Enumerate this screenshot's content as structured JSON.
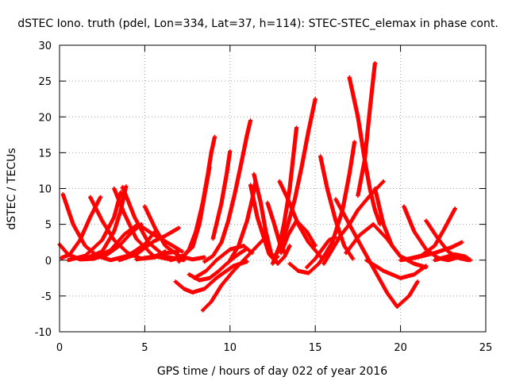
{
  "chart_data": {
    "type": "scatter",
    "title": "dSTEC Iono. truth (pdel, Lon=334, Lat=37, h=114): STEC-STEC_elemax in phase cont.",
    "xlabel": "GPS time / hours of day 022 of year 2016",
    "ylabel": "dSTEC  / TECUs",
    "xlim": [
      0,
      25
    ],
    "ylim": [
      -10,
      30
    ],
    "x_ticks": [
      "0",
      "5",
      "10",
      "15",
      "20",
      "25"
    ],
    "y_ticks": [
      "-10",
      "-5",
      "0",
      "5",
      "10",
      "15",
      "20",
      "25",
      "30"
    ],
    "grid": true,
    "marker": "+",
    "color": "#ff0000",
    "series": [
      {
        "x": [
          0.0,
          0.5,
          1.2,
          2.0,
          2.8,
          3.5,
          4.2,
          4.8
        ],
        "values": [
          2.2,
          0.8,
          0.1,
          0.2,
          0.8,
          2.0,
          3.8,
          5.0
        ]
      },
      {
        "x": [
          0.2,
          0.8,
          1.5,
          2.2,
          3.0,
          4.0,
          5.0,
          5.6
        ],
        "values": [
          9.2,
          5.0,
          2.0,
          0.6,
          0.0,
          0.6,
          2.2,
          4.0
        ]
      },
      {
        "x": [
          0.1,
          0.6,
          1.2,
          1.8,
          2.4
        ],
        "values": [
          0.3,
          0.8,
          2.8,
          6.0,
          8.8
        ]
      },
      {
        "x": [
          1.8,
          2.5,
          3.2,
          4.0,
          4.8,
          5.6,
          6.2
        ],
        "values": [
          8.8,
          5.5,
          2.8,
          1.0,
          0.2,
          0.4,
          1.2
        ]
      },
      {
        "x": [
          0.5,
          1.5,
          2.5,
          3.2,
          3.6
        ],
        "values": [
          0.0,
          0.6,
          2.8,
          6.0,
          9.5
        ]
      },
      {
        "x": [
          3.2,
          3.8,
          4.5,
          5.5,
          6.5,
          7.2
        ],
        "values": [
          10.0,
          6.5,
          3.0,
          0.6,
          0.1,
          0.6
        ]
      },
      {
        "x": [
          1.5,
          2.5,
          3.2,
          3.6,
          3.9
        ],
        "values": [
          0.2,
          1.2,
          4.0,
          7.0,
          10.3
        ]
      },
      {
        "x": [
          3.7,
          4.4,
          5.2,
          6.2,
          7.3
        ],
        "values": [
          10.2,
          6.0,
          2.5,
          0.5,
          0.0
        ]
      },
      {
        "x": [
          2.0,
          3.0,
          3.8,
          4.6,
          5.5,
          6.5,
          7.2
        ],
        "values": [
          0.2,
          1.4,
          3.6,
          5.0,
          3.6,
          2.2,
          1.2
        ]
      },
      {
        "x": [
          3.5,
          4.5,
          5.5,
          6.2,
          7.0
        ],
        "values": [
          0.0,
          0.8,
          2.6,
          3.4,
          4.5
        ]
      },
      {
        "x": [
          5.0,
          5.6,
          6.2,
          7.0,
          7.8,
          8.5
        ],
        "values": [
          7.5,
          4.5,
          2.0,
          0.6,
          0.1,
          0.4
        ]
      },
      {
        "x": [
          4.5,
          5.5,
          6.2,
          7.0
        ],
        "values": [
          0.1,
          0.5,
          1.0,
          1.2
        ]
      },
      {
        "x": [
          6.8,
          7.3,
          7.8,
          8.5,
          9.2,
          10.2,
          11.0
        ],
        "values": [
          -3.0,
          -4.0,
          -4.5,
          -4.0,
          -2.5,
          -0.8,
          -0.2
        ]
      },
      {
        "x": [
          7.0,
          7.6,
          8.0,
          8.4,
          8.7,
          8.9,
          9.1
        ],
        "values": [
          -0.2,
          1.5,
          4.0,
          8.0,
          12.0,
          15.0,
          17.2
        ]
      },
      {
        "x": [
          6.5,
          7.2,
          7.8,
          8.2,
          8.5,
          8.8
        ],
        "values": [
          0.0,
          0.4,
          1.8,
          5.0,
          9.0,
          13.0
        ]
      },
      {
        "x": [
          7.6,
          8.2,
          8.8,
          9.3,
          9.8,
          10.2,
          10.6,
          11.0
        ],
        "values": [
          -2.0,
          -2.8,
          -2.5,
          -1.6,
          -0.5,
          0.3,
          1.0,
          1.6
        ]
      },
      {
        "x": [
          7.9,
          8.6,
          9.2,
          10.0,
          10.8,
          11.3
        ],
        "values": [
          -2.5,
          -1.5,
          0.0,
          1.5,
          2.0,
          1.0
        ]
      },
      {
        "x": [
          8.4,
          8.9,
          9.5,
          10.2,
          11.0,
          11.6,
          12.0
        ],
        "values": [
          -7.0,
          -5.8,
          -3.5,
          -1.5,
          0.5,
          2.0,
          3.0
        ]
      },
      {
        "x": [
          8.5,
          9.0,
          9.5,
          9.9,
          10.3,
          10.7,
          11.0,
          11.2
        ],
        "values": [
          -0.2,
          0.6,
          2.5,
          5.5,
          9.5,
          14.0,
          17.5,
          19.5
        ]
      },
      {
        "x": [
          9.0,
          9.5,
          9.8,
          10.0
        ],
        "values": [
          3.0,
          8.0,
          12.0,
          15.2
        ]
      },
      {
        "x": [
          10.0,
          10.5,
          11.0,
          11.3,
          11.5
        ],
        "values": [
          0.0,
          2.0,
          5.5,
          8.5,
          11.0
        ]
      },
      {
        "x": [
          11.2,
          11.6,
          12.0,
          12.3,
          12.6,
          12.8
        ],
        "values": [
          10.5,
          6.0,
          3.0,
          0.8,
          0.0,
          0.5
        ]
      },
      {
        "x": [
          11.4,
          11.8,
          12.1,
          12.4,
          12.8,
          13.2,
          13.5
        ],
        "values": [
          12.0,
          8.0,
          4.0,
          1.0,
          -0.5,
          0.5,
          2.0
        ]
      },
      {
        "x": [
          12.5,
          12.9,
          13.2,
          13.5,
          13.9
        ],
        "values": [
          -0.5,
          2.0,
          5.5,
          10.0,
          18.5
        ]
      },
      {
        "x": [
          12.2,
          12.6,
          12.9,
          13.2
        ],
        "values": [
          8.0,
          5.0,
          2.5,
          1.0
        ]
      },
      {
        "x": [
          12.6,
          13.0,
          13.4,
          13.8,
          14.2,
          14.6,
          15.0
        ],
        "values": [
          0.5,
          2.0,
          5.0,
          8.5,
          13.0,
          18.0,
          22.5
        ]
      },
      {
        "x": [
          12.9,
          13.4,
          14.0,
          14.6,
          15.3
        ],
        "values": [
          11.0,
          8.5,
          5.0,
          2.5,
          0.5
        ]
      },
      {
        "x": [
          13.0,
          13.4,
          13.9,
          14.5,
          15.0
        ],
        "values": [
          1.0,
          3.5,
          5.5,
          4.0,
          2.0
        ]
      },
      {
        "x": [
          13.5,
          14.0,
          14.6,
          15.2,
          15.8
        ],
        "values": [
          -0.5,
          -1.5,
          -1.8,
          -0.5,
          1.5
        ]
      },
      {
        "x": [
          14.5,
          15.0,
          15.4,
          15.8,
          16.2
        ],
        "values": [
          -1.0,
          0.2,
          1.5,
          2.8,
          3.2
        ]
      },
      {
        "x": [
          15.3,
          15.7,
          16.2,
          16.7,
          17.2
        ],
        "values": [
          14.5,
          10.0,
          5.5,
          2.0,
          0.2
        ]
      },
      {
        "x": [
          15.5,
          16.0,
          16.6,
          17.0,
          17.3
        ],
        "values": [
          0.5,
          2.5,
          7.0,
          12.0,
          16.5
        ]
      },
      {
        "x": [
          15.5,
          16.0,
          16.5,
          17.0,
          17.5,
          18.2,
          19.0
        ],
        "values": [
          -0.5,
          1.5,
          3.5,
          5.0,
          7.0,
          9.0,
          11.0
        ]
      },
      {
        "x": [
          16.2,
          17.0,
          17.8,
          18.5,
          19.2,
          19.8,
          20.5,
          21.0
        ],
        "values": [
          8.5,
          5.0,
          1.5,
          -1.5,
          -4.5,
          -6.5,
          -5.0,
          -3.0
        ]
      },
      {
        "x": [
          17.0,
          17.5,
          17.9,
          18.2,
          18.5,
          18.8
        ],
        "values": [
          25.5,
          20.0,
          14.0,
          10.0,
          7.0,
          5.0
        ]
      },
      {
        "x": [
          17.5,
          17.9,
          18.2,
          18.5
        ],
        "values": [
          9.0,
          14.0,
          21.0,
          27.5
        ]
      },
      {
        "x": [
          18.5,
          19.0,
          19.5,
          20.0,
          20.5
        ],
        "values": [
          10.0,
          5.0,
          2.0,
          0.5,
          0.0
        ]
      },
      {
        "x": [
          16.8,
          17.6,
          18.4,
          19.2,
          20.0,
          20.8,
          21.5
        ],
        "values": [
          1.0,
          3.5,
          5.0,
          3.0,
          0.5,
          -0.5,
          -1.0
        ]
      },
      {
        "x": [
          18.0,
          19.0,
          20.0,
          20.8,
          21.5
        ],
        "values": [
          0.0,
          -1.5,
          -2.5,
          -2.0,
          -0.8
        ]
      },
      {
        "x": [
          20.2,
          20.8,
          21.5,
          22.2,
          22.8,
          23.5
        ],
        "values": [
          7.5,
          4.0,
          1.5,
          0.3,
          0.0,
          0.5
        ]
      },
      {
        "x": [
          20.5,
          21.2,
          22.0,
          22.6,
          23.2
        ],
        "values": [
          0.2,
          0.6,
          2.0,
          4.5,
          7.2
        ]
      },
      {
        "x": [
          21.5,
          22.2,
          22.8,
          23.4,
          24.0
        ],
        "values": [
          5.5,
          3.0,
          1.2,
          0.3,
          0.0
        ]
      },
      {
        "x": [
          20.0,
          21.0,
          22.0,
          23.0,
          23.6
        ],
        "values": [
          0.0,
          0.4,
          1.0,
          1.8,
          2.5
        ]
      },
      {
        "x": [
          22.0,
          22.6,
          23.2,
          23.8,
          24.1
        ],
        "values": [
          0.0,
          0.4,
          0.8,
          0.5,
          0.0
        ]
      }
    ]
  }
}
